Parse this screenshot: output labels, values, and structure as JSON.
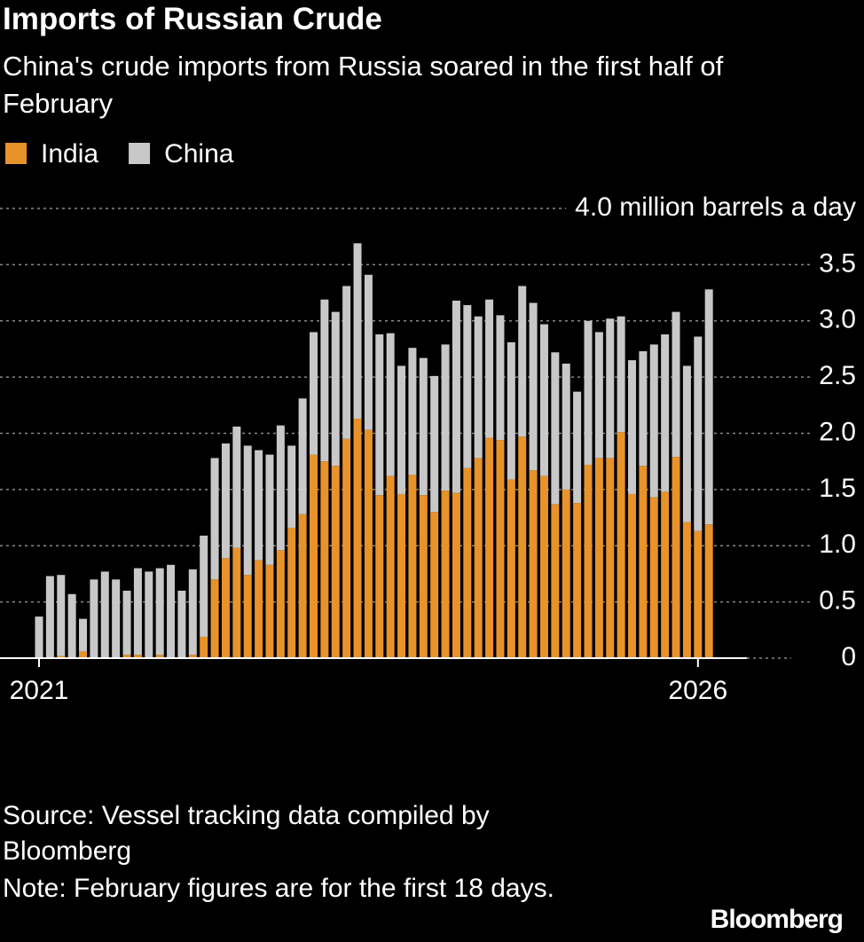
{
  "chart_data": {
    "type": "stacked-bar",
    "title": "Imports of Russian Crude",
    "subtitle": "China's crude imports from Russia soared in the first half of February",
    "source": "Source: Vessel tracking data compiled by Bloomberg",
    "note": "Note: February figures are for the first 18 days.",
    "logo": "Bloomberg",
    "categories": [
      "2021",
      null,
      null,
      null,
      null,
      null,
      null,
      null,
      null,
      null,
      null,
      null,
      null,
      null,
      null,
      null,
      null,
      null,
      null,
      null,
      null,
      null,
      null,
      null,
      null,
      null,
      null,
      null,
      null,
      null,
      null,
      null,
      null,
      null,
      null,
      null,
      null,
      null,
      null,
      null,
      null,
      null,
      null,
      null,
      null,
      null,
      null,
      null,
      null,
      null,
      null,
      null,
      null,
      null,
      null,
      null,
      null,
      null,
      null,
      null,
      "2026",
      null
    ],
    "series": [
      {
        "name": "India",
        "color": "#e8922a",
        "values": [
          0,
          0,
          0.02,
          0,
          0.06,
          0,
          0,
          0,
          0.03,
          0.03,
          0,
          0.03,
          0,
          0,
          0.03,
          0.19,
          0.7,
          0.89,
          0.98,
          0.74,
          0.87,
          0.83,
          0.96,
          1.16,
          1.28,
          1.81,
          1.75,
          1.71,
          1.95,
          2.13,
          2.03,
          1.45,
          1.62,
          1.46,
          1.63,
          1.45,
          1.3,
          1.49,
          1.47,
          1.69,
          1.78,
          1.96,
          1.94,
          1.59,
          1.97,
          1.67,
          1.62,
          1.37,
          1.5,
          1.38,
          1.72,
          1.78,
          1.78,
          2.01,
          1.46,
          1.71,
          1.43,
          1.48,
          1.79,
          1.21,
          1.13,
          1.19
        ]
      },
      {
        "name": "China",
        "color": "#c8c8c8",
        "values": [
          0.37,
          0.73,
          0.72,
          0.57,
          0.29,
          0.7,
          0.77,
          0.7,
          0.57,
          0.77,
          0.77,
          0.77,
          0.83,
          0.6,
          0.76,
          0.9,
          1.08,
          1.02,
          1.08,
          1.15,
          0.98,
          0.98,
          1.11,
          0.73,
          1.03,
          1.09,
          1.44,
          1.37,
          1.36,
          1.56,
          1.38,
          1.43,
          1.27,
          1.14,
          1.13,
          1.22,
          1.21,
          1.3,
          1.71,
          1.45,
          1.26,
          1.23,
          1.11,
          1.22,
          1.34,
          1.49,
          1.35,
          1.35,
          1.12,
          0.99,
          1.28,
          1.12,
          1.24,
          1.03,
          1.19,
          1.02,
          1.36,
          1.4,
          1.29,
          1.39,
          1.73,
          2.09
        ]
      }
    ],
    "ylim": [
      0,
      4
    ],
    "yticks": [
      0,
      0.5,
      {
        "value": 1,
        "label": "1.0"
      },
      1.5,
      {
        "value": 2,
        "label": "2.0"
      },
      2.5,
      {
        "value": 3,
        "label": "3.0"
      },
      3.5,
      {
        "value": 4,
        "label": "4.0 million barrels a day"
      }
    ],
    "grid": true
  }
}
